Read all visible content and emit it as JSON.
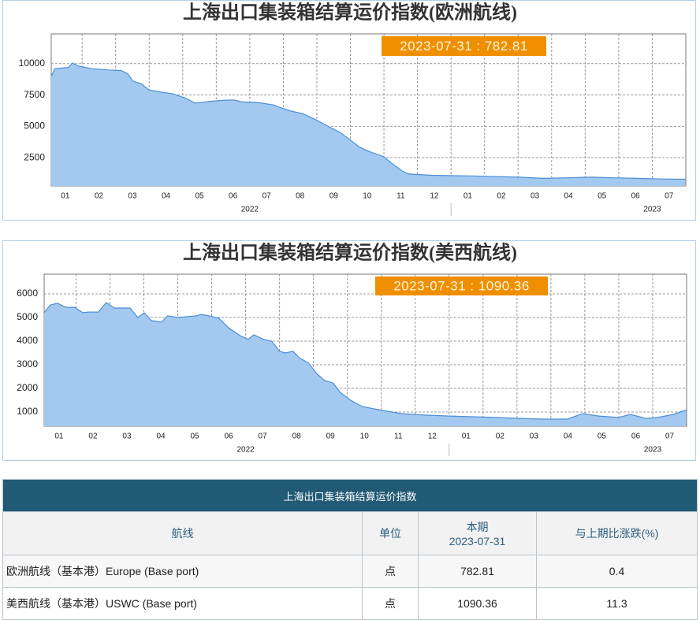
{
  "chart_data": [
    {
      "type": "area",
      "title": "上海出口集装箱结算运价指数(欧洲航线)",
      "annotation": "2023-07-31 : 782.81",
      "color": "#a3c9f1",
      "line_color": "#4d8fd3",
      "x": [
        0.58,
        0.69,
        1.09,
        1.21,
        1.4,
        1.8,
        2.27,
        2.67,
        2.86,
        3.02,
        3.26,
        3.5,
        3.92,
        4.2,
        4.53,
        4.7,
        4.86,
        5.33,
        5.81,
        6.04,
        6.28,
        6.75,
        7.22,
        7.41,
        7.69,
        8.09,
        8.49,
        8.87,
        9.2,
        9.46,
        9.77,
        10.05,
        10.48,
        10.76,
        11.04,
        11.23,
        11.94,
        13.12,
        13.83,
        14.53,
        15.24,
        15.95,
        16.66,
        17.36,
        18.07,
        18.78,
        19.49
      ],
      "values": [
        9000,
        9600,
        9700,
        10050,
        9800,
        9600,
        9500,
        9450,
        9200,
        8600,
        8400,
        7900,
        7700,
        7600,
        7300,
        7100,
        6850,
        7000,
        7100,
        7100,
        6950,
        6900,
        6700,
        6500,
        6250,
        6000,
        5500,
        4950,
        4500,
        4000,
        3350,
        3000,
        2600,
        2000,
        1450,
        1200,
        1100,
        1050,
        1000,
        950,
        850,
        900,
        950,
        900,
        850,
        800,
        782.81
      ],
      "xlim": [
        0.58,
        19.5
      ],
      "ylim": [
        250,
        12375
      ],
      "yticks": [
        2500,
        5000,
        7500,
        10000
      ],
      "xticks": [
        {
          "value": 1,
          "label": "01"
        },
        {
          "value": 2,
          "label": "02"
        },
        {
          "value": 3,
          "label": "03"
        },
        {
          "value": 4,
          "label": "04"
        },
        {
          "value": 5,
          "label": "05"
        },
        {
          "value": 6,
          "label": "06"
        },
        {
          "value": 7,
          "label": "07"
        },
        {
          "value": 8,
          "label": "08"
        },
        {
          "value": 9,
          "label": "09"
        },
        {
          "value": 10,
          "label": "10"
        },
        {
          "value": 11,
          "label": "11"
        },
        {
          "value": 12,
          "label": "12"
        },
        {
          "value": 13,
          "label": "01"
        },
        {
          "value": 14,
          "label": "02"
        },
        {
          "value": 15,
          "label": "03"
        },
        {
          "value": 16,
          "label": "04"
        },
        {
          "value": 17,
          "label": "05"
        },
        {
          "value": 18,
          "label": "06"
        },
        {
          "value": 19,
          "label": "07"
        }
      ],
      "year_ticks": [
        {
          "value": 6.5,
          "label": "2022"
        },
        {
          "value": 18.5,
          "label": "2023"
        }
      ],
      "grid": true
    },
    {
      "type": "area",
      "title": "上海出口集装箱结算运价指数(美西航线)",
      "annotation": "2023-07-31 : 1090.36",
      "color": "#a3c9f1",
      "line_color": "#4d8fd3",
      "x": [
        0.56,
        0.74,
        0.95,
        1.21,
        1.46,
        1.7,
        1.86,
        2.16,
        2.39,
        2.63,
        3.09,
        3.32,
        3.51,
        3.72,
        4.02,
        4.2,
        4.48,
        5.06,
        5.18,
        5.41,
        5.71,
        5.99,
        6.34,
        6.57,
        6.74,
        7.04,
        7.27,
        7.5,
        7.67,
        7.9,
        8.08,
        8.36,
        8.59,
        8.83,
        9.08,
        9.29,
        9.59,
        9.94,
        10.52,
        11.1,
        11.8,
        12.5,
        13.19,
        13.89,
        14.59,
        15.28,
        15.98,
        16.44,
        16.91,
        17.49,
        17.84,
        18.3,
        18.65,
        19.11,
        19.49
      ],
      "values": [
        5200,
        5530,
        5600,
        5430,
        5430,
        5200,
        5230,
        5230,
        5630,
        5400,
        5400,
        5000,
        5200,
        4870,
        4800,
        5070,
        5000,
        5070,
        5130,
        5070,
        4970,
        4570,
        4230,
        4070,
        4270,
        4070,
        4000,
        3570,
        3500,
        3570,
        3300,
        3070,
        2630,
        2330,
        2230,
        1830,
        1500,
        1230,
        1070,
        930,
        870,
        830,
        800,
        770,
        730,
        700,
        700,
        930,
        830,
        770,
        900,
        730,
        770,
        900,
        1090.36
      ],
      "xlim": [
        0.56,
        19.5
      ],
      "ylim": [
        400,
        6833
      ],
      "yticks": [
        1000,
        2000,
        3000,
        4000,
        5000,
        6000
      ],
      "xticks": [
        {
          "value": 1,
          "label": "01"
        },
        {
          "value": 2,
          "label": "02"
        },
        {
          "value": 3,
          "label": "03"
        },
        {
          "value": 4,
          "label": "04"
        },
        {
          "value": 5,
          "label": "05"
        },
        {
          "value": 6,
          "label": "06"
        },
        {
          "value": 7,
          "label": "07"
        },
        {
          "value": 8,
          "label": "08"
        },
        {
          "value": 9,
          "label": "09"
        },
        {
          "value": 10,
          "label": "10"
        },
        {
          "value": 11,
          "label": "11"
        },
        {
          "value": 12,
          "label": "12"
        },
        {
          "value": 13,
          "label": "01"
        },
        {
          "value": 14,
          "label": "02"
        },
        {
          "value": 15,
          "label": "03"
        },
        {
          "value": 16,
          "label": "04"
        },
        {
          "value": 17,
          "label": "05"
        },
        {
          "value": 18,
          "label": "06"
        },
        {
          "value": 19,
          "label": "07"
        }
      ],
      "year_ticks": [
        {
          "value": 6.5,
          "label": "2022"
        },
        {
          "value": 18.5,
          "label": "2023"
        }
      ],
      "grid": true
    }
  ],
  "table": {
    "title": "上海出口集装箱结算运价指数",
    "columns": [
      "航线",
      "单位",
      "本期\n2023-07-31",
      "与上期比涨跌(%)"
    ],
    "rows": [
      [
        "欧洲航线（基本港）Europe (Base port)",
        "点",
        782.81,
        0.4
      ],
      [
        "美西航线（基本港）USWC (Base port)",
        "点",
        1090.36,
        11.3
      ]
    ]
  }
}
